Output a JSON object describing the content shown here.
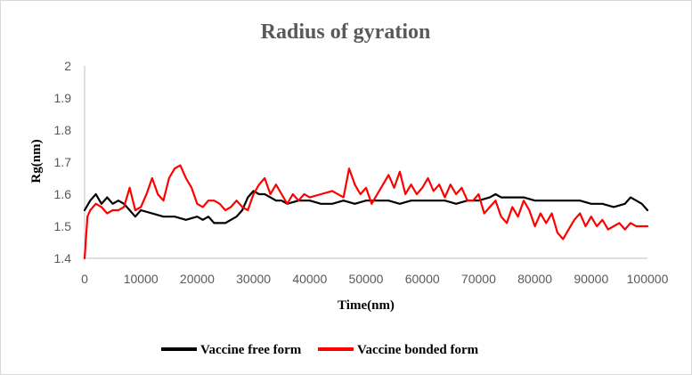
{
  "chart_data": {
    "type": "line",
    "title": "Radius of gyration",
    "xlabel": "Time(nm)",
    "ylabel": "Rg(nm)",
    "xlim": [
      0,
      100000
    ],
    "ylim": [
      1.4,
      2.0
    ],
    "xticks": [
      0,
      10000,
      20000,
      30000,
      40000,
      50000,
      60000,
      70000,
      80000,
      90000,
      100000
    ],
    "xtick_labels": [
      "0",
      "10000",
      "20000",
      "30000",
      "40000",
      "50000",
      "60000",
      "70000",
      "80000",
      "90000",
      "100000"
    ],
    "yticks": [
      1.4,
      1.5,
      1.6,
      1.7,
      1.8,
      1.9,
      2.0
    ],
    "ytick_labels": [
      "1.4",
      "1.5",
      "1.6",
      "1.7",
      "1.8",
      "1.9",
      "2"
    ],
    "grid": false,
    "legend_position": "bottom",
    "series": [
      {
        "name": "Vaccine free form",
        "color": "#000000",
        "x": [
          0,
          1000,
          2000,
          3000,
          4000,
          5000,
          6000,
          7000,
          8000,
          9000,
          10000,
          12000,
          14000,
          16000,
          18000,
          20000,
          21000,
          22000,
          23000,
          24000,
          25000,
          26000,
          27000,
          28000,
          29000,
          30000,
          31000,
          32000,
          33000,
          34000,
          35000,
          36000,
          38000,
          40000,
          42000,
          44000,
          46000,
          48000,
          50000,
          52000,
          54000,
          56000,
          58000,
          60000,
          62000,
          64000,
          66000,
          68000,
          70000,
          72000,
          73000,
          74000,
          76000,
          78000,
          80000,
          82000,
          84000,
          86000,
          88000,
          90000,
          92000,
          94000,
          96000,
          97000,
          98000,
          99000,
          100000
        ],
        "y": [
          1.55,
          1.58,
          1.6,
          1.57,
          1.59,
          1.57,
          1.58,
          1.57,
          1.55,
          1.53,
          1.55,
          1.54,
          1.53,
          1.53,
          1.52,
          1.53,
          1.52,
          1.53,
          1.51,
          1.51,
          1.51,
          1.52,
          1.53,
          1.55,
          1.59,
          1.61,
          1.6,
          1.6,
          1.59,
          1.58,
          1.58,
          1.57,
          1.58,
          1.58,
          1.57,
          1.57,
          1.58,
          1.57,
          1.58,
          1.58,
          1.58,
          1.57,
          1.58,
          1.58,
          1.58,
          1.58,
          1.57,
          1.58,
          1.58,
          1.59,
          1.6,
          1.59,
          1.59,
          1.59,
          1.58,
          1.58,
          1.58,
          1.58,
          1.58,
          1.57,
          1.57,
          1.56,
          1.57,
          1.59,
          1.58,
          1.57,
          1.55
        ]
      },
      {
        "name": "Vaccine bonded form",
        "color": "#ff0000",
        "x": [
          0,
          500,
          1000,
          2000,
          3000,
          4000,
          5000,
          6000,
          7000,
          8000,
          9000,
          10000,
          11000,
          12000,
          13000,
          14000,
          15000,
          16000,
          17000,
          18000,
          19000,
          20000,
          21000,
          22000,
          23000,
          24000,
          25000,
          26000,
          27000,
          28000,
          29000,
          30000,
          31000,
          32000,
          33000,
          34000,
          35000,
          36000,
          37000,
          38000,
          39000,
          40000,
          42000,
          44000,
          46000,
          47000,
          48000,
          49000,
          50000,
          51000,
          52000,
          53000,
          54000,
          55000,
          56000,
          57000,
          58000,
          59000,
          60000,
          61000,
          62000,
          63000,
          64000,
          65000,
          66000,
          67000,
          68000,
          69000,
          70000,
          71000,
          72000,
          73000,
          74000,
          75000,
          76000,
          77000,
          78000,
          79000,
          80000,
          81000,
          82000,
          83000,
          84000,
          85000,
          86000,
          87000,
          88000,
          89000,
          90000,
          91000,
          92000,
          93000,
          94000,
          95000,
          96000,
          97000,
          98000,
          99000,
          100000
        ],
        "y": [
          1.4,
          1.53,
          1.55,
          1.57,
          1.56,
          1.54,
          1.55,
          1.55,
          1.56,
          1.62,
          1.55,
          1.56,
          1.6,
          1.65,
          1.6,
          1.58,
          1.65,
          1.68,
          1.69,
          1.65,
          1.62,
          1.57,
          1.56,
          1.58,
          1.58,
          1.57,
          1.55,
          1.56,
          1.58,
          1.56,
          1.55,
          1.6,
          1.63,
          1.65,
          1.6,
          1.63,
          1.6,
          1.57,
          1.6,
          1.58,
          1.6,
          1.59,
          1.6,
          1.61,
          1.59,
          1.68,
          1.63,
          1.6,
          1.62,
          1.57,
          1.6,
          1.63,
          1.66,
          1.62,
          1.67,
          1.6,
          1.63,
          1.6,
          1.62,
          1.65,
          1.61,
          1.63,
          1.59,
          1.63,
          1.6,
          1.62,
          1.58,
          1.58,
          1.6,
          1.54,
          1.56,
          1.58,
          1.53,
          1.51,
          1.56,
          1.53,
          1.58,
          1.55,
          1.5,
          1.54,
          1.51,
          1.54,
          1.48,
          1.46,
          1.49,
          1.52,
          1.54,
          1.5,
          1.53,
          1.5,
          1.52,
          1.49,
          1.5,
          1.51,
          1.49,
          1.51,
          1.5,
          1.5,
          1.5
        ]
      }
    ]
  }
}
